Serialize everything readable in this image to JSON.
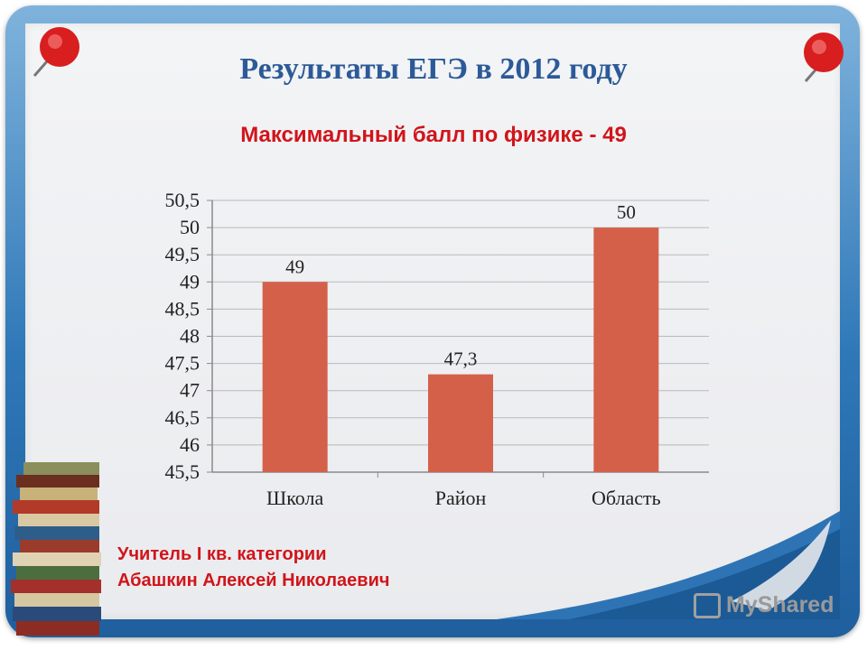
{
  "slide": {
    "title": "Результаты ЕГЭ в 2012 году",
    "subtitle": "Максимальный балл по физике - 49",
    "teacher_line1": "Учитель I кв. категории",
    "teacher_line2": "Абашкин Алексей Николаевич",
    "brand": "MyShared"
  },
  "chart_data": {
    "type": "bar",
    "categories": [
      "Школа",
      "Район",
      "Область"
    ],
    "values": [
      49,
      47.3,
      50
    ],
    "value_labels": [
      "49",
      "47,3",
      "50"
    ],
    "ylim": [
      45.5,
      50.5
    ],
    "yticks": [
      "45,5",
      "46",
      "46,5",
      "47",
      "47,5",
      "48",
      "48,5",
      "49",
      "49,5",
      "50",
      "50,5"
    ],
    "grid": true,
    "legend": "none",
    "bar_color": "#d4604a"
  },
  "colors": {
    "title": "#2c5a98",
    "accent_red": "#d0151b",
    "frame_blue": "#2f78b8"
  },
  "icons": [
    "pushpin-icon",
    "books-icon",
    "presentation-board-icon"
  ]
}
